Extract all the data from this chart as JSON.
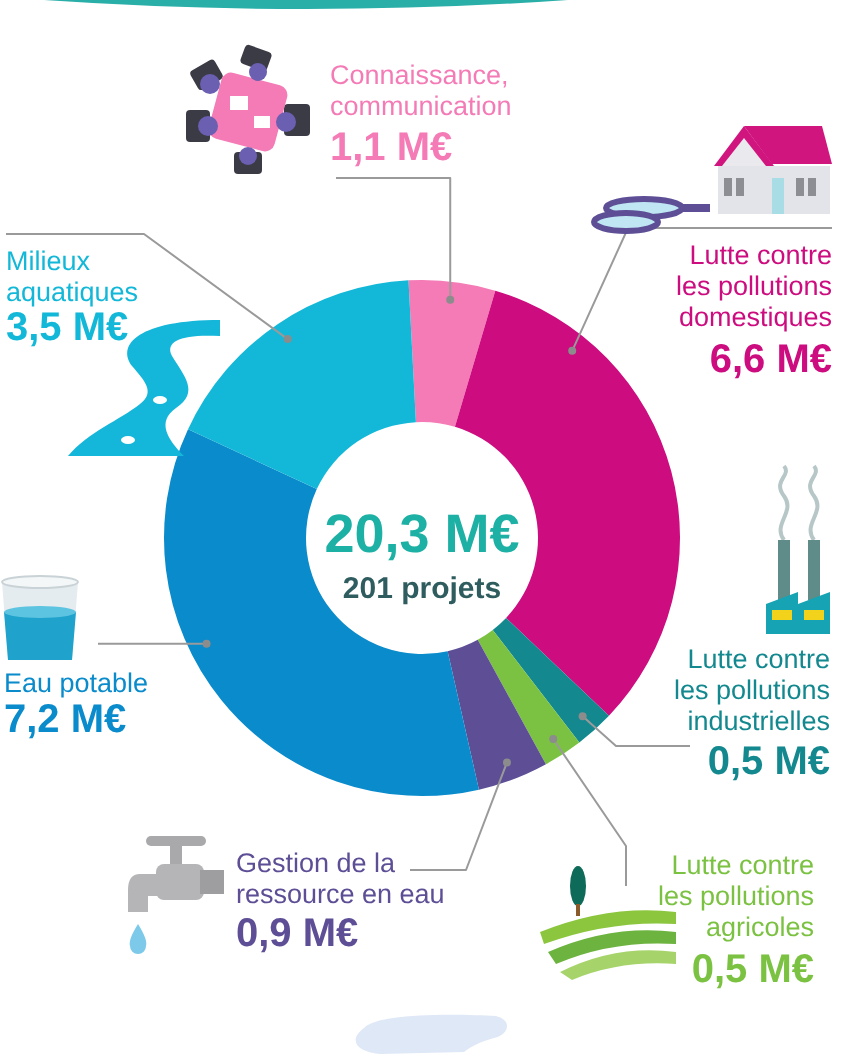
{
  "chart_data": {
    "type": "donut",
    "categories": [
      "Connaissance, communication",
      "Lutte contre les pollutions domestiques",
      "Lutte contre les pollutions industrielles",
      "Lutte contre les pollutions agricoles",
      "Gestion de la ressource en eau",
      "Eau potable",
      "Milieux aquatiques"
    ],
    "values": [
      1.1,
      6.6,
      0.5,
      0.5,
      0.9,
      7.2,
      3.5
    ],
    "colors": [
      "#f47bb6",
      "#cc0c7f",
      "#13898f",
      "#7cc242",
      "#5d4e96",
      "#0a8bcb",
      "#13b8d8"
    ],
    "value_labels": [
      "1,1 M€",
      "6,6 M€",
      "0,5 M€",
      "0,5 M€",
      "0,9 M€",
      "7,2 M€",
      "3,5 M€"
    ],
    "annotations": [
      "20,3 M€",
      "201 projets"
    ]
  }
}
